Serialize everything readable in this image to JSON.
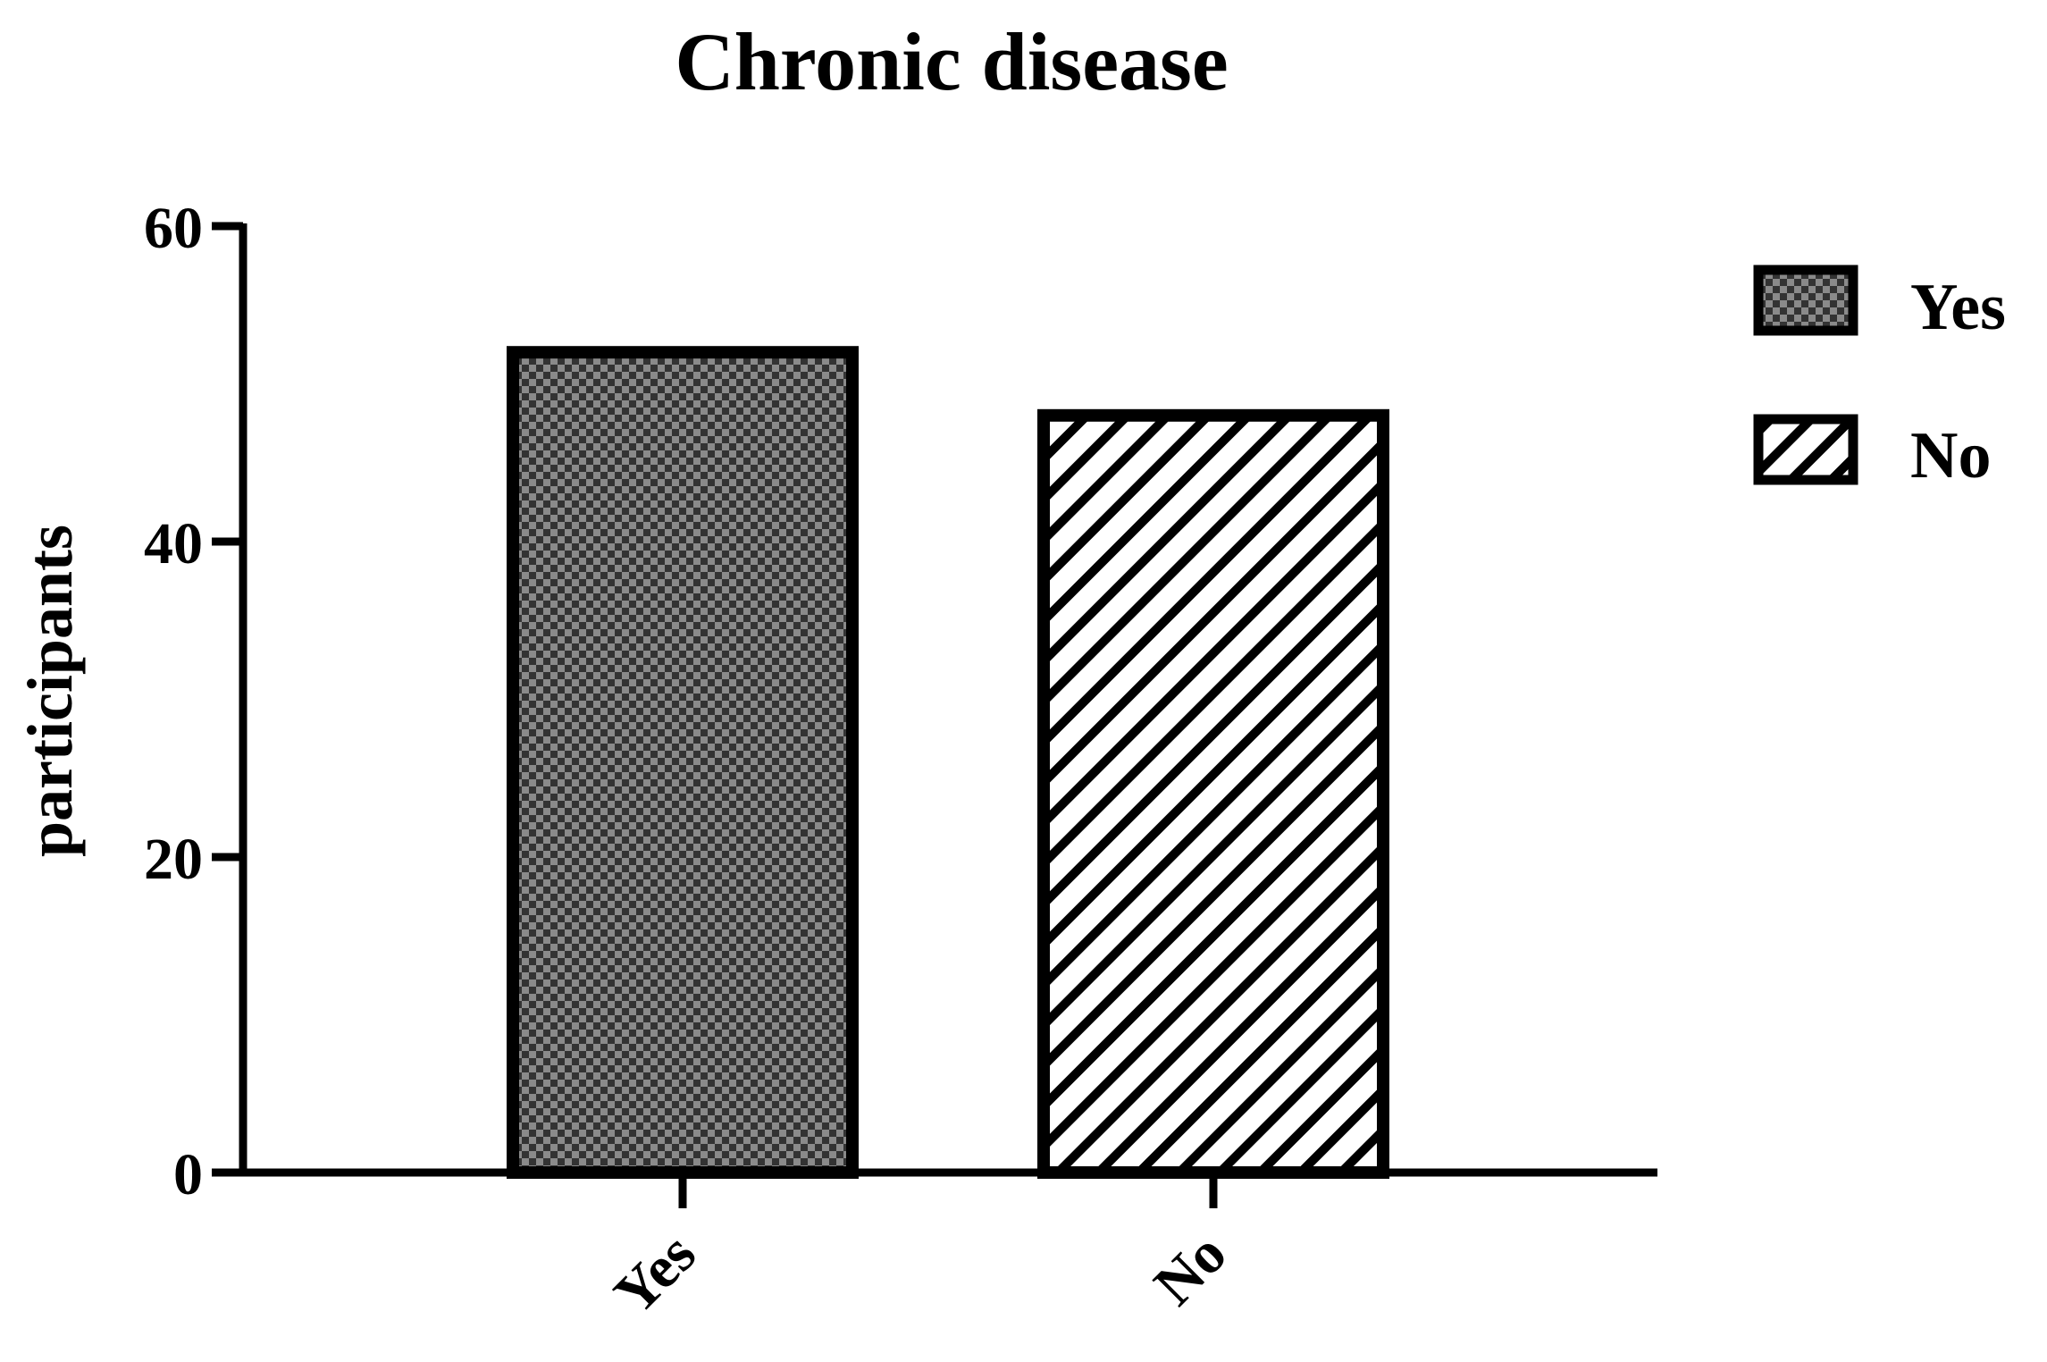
{
  "chart_data": {
    "type": "bar",
    "title": "Chronic disease",
    "xlabel": "",
    "ylabel": "participants",
    "categories": [
      "Yes",
      "No"
    ],
    "values": [
      52,
      48
    ],
    "ylim": [
      0,
      60
    ],
    "yticks": [
      "0",
      "20",
      "40",
      "60"
    ],
    "ytick_values": [
      0,
      20,
      40,
      60
    ],
    "grid": false,
    "legend_placement": "top-right",
    "legend": [
      {
        "label": "Yes",
        "pattern": "checkered"
      },
      {
        "label": "No",
        "pattern": "diagonal-stripes"
      }
    ],
    "colors": {
      "outline": "#000000",
      "checker_dark": "#333333",
      "checker_light": "#8a8a8a",
      "stripe": "#000000",
      "stripe_bg": "#ffffff"
    }
  }
}
